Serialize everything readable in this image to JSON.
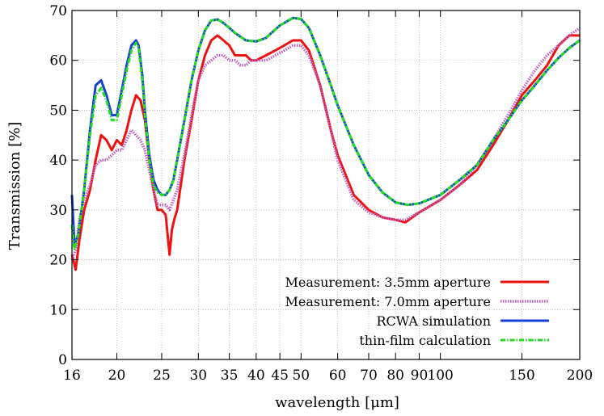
{
  "chart_data": {
    "type": "line",
    "title": "",
    "xlabel": "wavelength  [μm]",
    "ylabel": "Transmission [%]",
    "xscale": "log",
    "xlim": [
      16,
      200
    ],
    "ylim": [
      0,
      70
    ],
    "grid": true,
    "legend_position": "bottom-right",
    "x_ticks": [
      16,
      20,
      25,
      30,
      35,
      40,
      45,
      50,
      60,
      70,
      80,
      90,
      100,
      150,
      200
    ],
    "y_ticks": [
      0,
      10,
      20,
      30,
      40,
      50,
      60,
      70
    ],
    "series": [
      {
        "name": "Measurement: 3.5mm aperture",
        "color": "#ee1111",
        "style": "solid",
        "x": [
          16,
          16.3,
          16.6,
          17,
          17.5,
          18,
          18.5,
          19,
          19.5,
          20,
          20.5,
          21,
          21.5,
          22,
          22.5,
          23,
          23.5,
          24,
          24.5,
          25,
          25.5,
          26,
          26.3,
          26.6,
          27,
          28,
          29,
          30,
          31,
          32,
          33,
          34,
          35,
          36,
          37,
          38,
          39,
          40,
          42,
          44,
          46,
          48,
          50,
          52,
          55,
          58,
          60,
          65,
          70,
          75,
          80,
          84,
          90,
          100,
          110,
          120,
          130,
          140,
          150,
          160,
          170,
          180,
          190,
          200
        ],
        "y": [
          21,
          18,
          24,
          30,
          34,
          40,
          45,
          44,
          42,
          44,
          43,
          46,
          50,
          53,
          52,
          48,
          40,
          34,
          30,
          30,
          29,
          21,
          26,
          28,
          30,
          40,
          48,
          56,
          61,
          64,
          65,
          64,
          63,
          61,
          61,
          61,
          60,
          60,
          61,
          62,
          63,
          64,
          64,
          62,
          55,
          46,
          41,
          33,
          30,
          28.5,
          28,
          27.5,
          29.5,
          32,
          35,
          38,
          43,
          48,
          53,
          56,
          59,
          63,
          65,
          65
        ]
      },
      {
        "name": "Measurement: 7.0mm aperture",
        "color": "#c060c0",
        "style": "dotted",
        "x": [
          16,
          16.3,
          16.6,
          17,
          17.5,
          18,
          18.5,
          19,
          19.5,
          20,
          20.5,
          21,
          21.5,
          22,
          22.5,
          23,
          23.5,
          24,
          24.5,
          25,
          25.5,
          26,
          26.5,
          27,
          28,
          29,
          30,
          31,
          32,
          33,
          34,
          35,
          36,
          37,
          38,
          39,
          40,
          42,
          44,
          46,
          48,
          50,
          52,
          55,
          58,
          60,
          65,
          70,
          75,
          80,
          84,
          90,
          100,
          110,
          120,
          130,
          140,
          150,
          160,
          170,
          180,
          190,
          200
        ],
        "y": [
          20,
          22,
          28,
          32,
          35,
          39,
          40,
          40,
          41,
          42,
          42,
          44,
          46,
          45,
          44,
          42,
          38,
          34,
          31,
          31,
          31,
          30,
          32,
          34,
          41,
          49,
          56,
          59,
          60,
          61,
          61,
          60,
          60,
          59,
          59,
          60,
          60,
          60,
          61,
          62,
          63,
          63,
          61,
          55,
          46,
          40,
          32,
          29.5,
          28.5,
          28,
          28,
          29.5,
          32,
          35,
          39,
          44,
          49,
          54,
          58,
          61,
          63,
          65,
          66.5
        ]
      },
      {
        "name": "RCWA simulation",
        "color": "#1a3fd4",
        "style": "solid",
        "x": [
          16,
          16.2,
          16.5,
          17,
          17.5,
          18,
          18.5,
          19,
          19.5,
          20,
          20.5,
          21,
          21.5,
          22,
          22.3,
          22.7,
          23,
          23.5,
          24,
          24.5,
          25,
          25.5,
          26,
          26.5,
          27,
          28,
          29,
          30,
          31,
          32,
          33,
          34,
          35,
          36,
          38,
          40,
          42,
          45,
          48,
          50,
          52,
          55,
          58,
          60,
          65,
          70,
          75,
          80,
          85,
          90,
          100,
          110,
          120,
          130,
          140,
          150,
          160,
          170,
          180,
          190,
          200
        ],
        "y": [
          33,
          23,
          25,
          34,
          46,
          55,
          56,
          53,
          49,
          49,
          54,
          59,
          63,
          64,
          63,
          57,
          50,
          41,
          36,
          34,
          33,
          33,
          34,
          36,
          40,
          48,
          56,
          62,
          66,
          68,
          68.2,
          67.5,
          66.5,
          65.5,
          64,
          63.8,
          64.5,
          67,
          68.5,
          68.3,
          66.5,
          61,
          55,
          51,
          43,
          37,
          33.5,
          31.5,
          31,
          31.3,
          33,
          36,
          39,
          44,
          48,
          52,
          55,
          58,
          60.5,
          62.5,
          64
        ]
      },
      {
        "name": "thin-film calculation",
        "color": "#22dd22",
        "style": "dashdot",
        "x": [
          16,
          16.2,
          16.5,
          17,
          17.5,
          18,
          18.5,
          19,
          19.5,
          20,
          20.5,
          21,
          21.5,
          22,
          22.3,
          22.7,
          23,
          23.5,
          24,
          24.5,
          25,
          25.5,
          26,
          26.5,
          27,
          28,
          29,
          30,
          31,
          32,
          33,
          34,
          35,
          36,
          38,
          40,
          42,
          45,
          48,
          50,
          52,
          55,
          58,
          60,
          65,
          70,
          75,
          80,
          85,
          90,
          100,
          110,
          120,
          130,
          140,
          150,
          160,
          170,
          180,
          190,
          200
        ],
        "y": [
          27,
          22,
          25,
          34,
          45,
          53,
          54.5,
          52,
          48,
          48,
          53,
          58,
          62,
          63.5,
          62.5,
          56,
          49,
          40,
          35,
          33.5,
          33,
          33,
          34,
          36,
          40,
          48,
          56,
          62,
          66,
          68,
          68.2,
          67.5,
          66.5,
          65.5,
          64,
          63.8,
          64.5,
          67,
          68.5,
          68.3,
          66.5,
          61,
          55,
          51,
          43,
          37,
          33.5,
          31.5,
          31,
          31.3,
          33,
          36,
          39,
          44,
          48,
          52,
          55,
          58,
          60.5,
          62.5,
          64
        ]
      }
    ]
  }
}
